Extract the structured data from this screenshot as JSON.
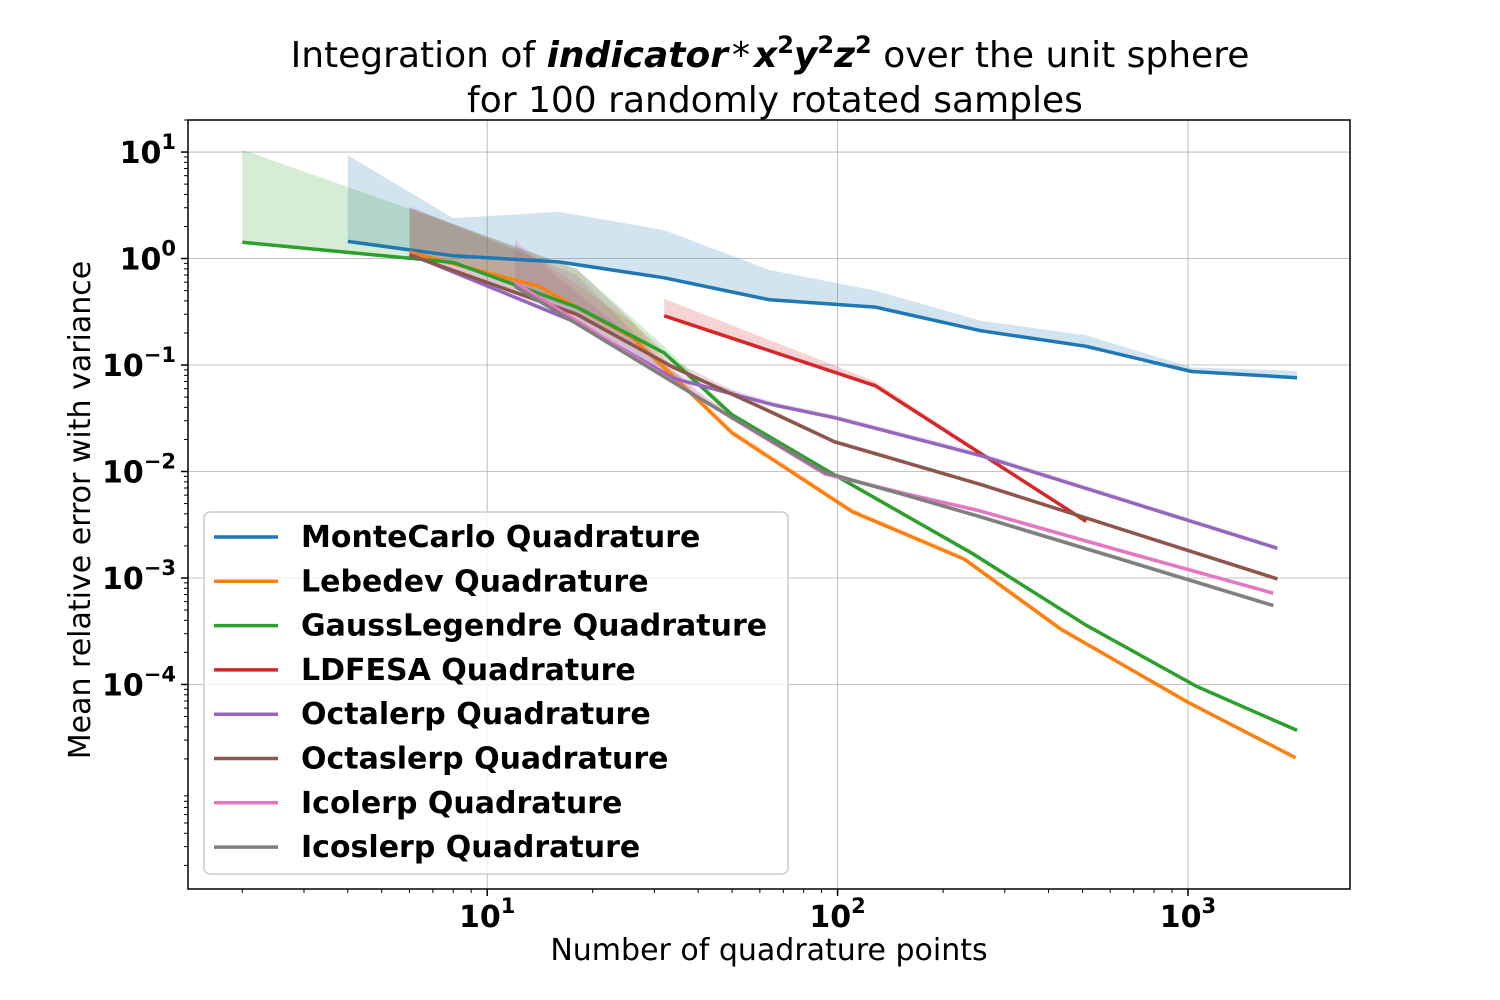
{
  "chart_data": {
    "type": "line",
    "title": {
      "prefix": "Integration of ",
      "math": [
        "indicator",
        "*",
        "x",
        "2",
        "y",
        "2",
        "z",
        "2"
      ],
      "suffix": " over the unit sphere",
      "line2": "for 100 randomly rotated samples"
    },
    "xlabel": "Number of quadrature points",
    "ylabel": "Mean relative error with variance",
    "x_scale": "log",
    "y_scale": "log",
    "xlim": [
      1.4,
      2900
    ],
    "ylim": [
      1.2e-06,
      20
    ],
    "x_ticks": [
      {
        "value": 10,
        "base": "10",
        "exp": "1"
      },
      {
        "value": 100,
        "base": "10",
        "exp": "2"
      },
      {
        "value": 1000,
        "base": "10",
        "exp": "3"
      }
    ],
    "y_ticks": [
      {
        "value": 10,
        "base": "10",
        "exp": "1"
      },
      {
        "value": 1,
        "base": "10",
        "exp": "0"
      },
      {
        "value": 0.1,
        "base": "10",
        "exp": "−1"
      },
      {
        "value": 0.01,
        "base": "10",
        "exp": "−2"
      },
      {
        "value": 0.001,
        "base": "10",
        "exp": "−3"
      },
      {
        "value": 0.0001,
        "base": "10",
        "exp": "−4"
      }
    ],
    "grid": true,
    "legend_position": "lower-left",
    "series": [
      {
        "name": "MonteCarlo Quadrature",
        "color": "#1f77b4",
        "x": [
          4,
          8,
          16,
          32,
          64,
          128,
          256,
          512,
          1024,
          2048
        ],
        "y": [
          1.45,
          1.06,
          0.93,
          0.66,
          0.41,
          0.35,
          0.21,
          0.15,
          0.087,
          0.076
        ],
        "band_upper": [
          9.3,
          2.4,
          2.75,
          1.85,
          0.78,
          0.5,
          0.26,
          0.19,
          0.095,
          0.088
        ],
        "band_lower": [
          1.45,
          1.06,
          0.93,
          0.66,
          0.41,
          0.35,
          0.21,
          0.15,
          0.087,
          0.076
        ]
      },
      {
        "name": "Lebedev Quadrature",
        "color": "#ff7f0e",
        "x": [
          6,
          14,
          26,
          38,
          50,
          110,
          230,
          434,
          1000,
          2030
        ],
        "y": [
          1.15,
          0.55,
          0.18,
          0.055,
          0.023,
          0.0042,
          0.0015,
          0.00033,
          6.8e-05,
          2.05e-05
        ],
        "band_upper": [
          3.0,
          1.0,
          0.25,
          0.06,
          0.025,
          0.0045,
          0.0016,
          0.00035,
          7e-05,
          2.1e-05
        ],
        "band_lower": [
          1.15,
          0.55,
          0.18,
          0.055,
          0.023,
          0.0042,
          0.0015,
          0.00033,
          6.8e-05,
          2.05e-05
        ]
      },
      {
        "name": "GaussLegendre Quadrature",
        "color": "#2ca02c",
        "x": [
          2,
          8,
          18,
          32,
          50,
          98,
          242,
          512,
          1058,
          2048
        ],
        "y": [
          1.42,
          0.92,
          0.35,
          0.13,
          0.034,
          0.0093,
          0.0017,
          0.00036,
          9.6e-05,
          3.7e-05
        ],
        "band_upper": [
          10.5,
          2.1,
          0.8,
          0.15,
          0.036,
          0.0097,
          0.0018,
          0.00037,
          0.0001,
          3.8e-05
        ],
        "band_lower": [
          1.42,
          0.92,
          0.35,
          0.13,
          0.034,
          0.0093,
          0.0017,
          0.00036,
          9.6e-05,
          3.7e-05
        ]
      },
      {
        "name": "LDFESA Quadrature",
        "color": "#d62728",
        "x": [
          32,
          128,
          512
        ],
        "y": [
          0.29,
          0.064,
          0.0034
        ],
        "band_upper": [
          0.42,
          0.07,
          0.0035
        ],
        "band_lower": [
          0.29,
          0.064,
          0.0034
        ]
      },
      {
        "name": "Octalerp Quadrature",
        "color": "#9467bd",
        "x": [
          6,
          18,
          34,
          66,
          98,
          258,
          1800
        ],
        "y": [
          1.1,
          0.25,
          0.075,
          0.042,
          0.032,
          0.014,
          0.0019
        ],
        "band_upper": [
          3.1,
          0.7,
          0.085,
          0.045,
          0.034,
          0.015,
          0.002
        ],
        "band_lower": [
          1.1,
          0.25,
          0.075,
          0.042,
          0.032,
          0.014,
          0.0019
        ]
      },
      {
        "name": "Octaslerp Quadrature",
        "color": "#8c564b",
        "x": [
          6,
          18,
          34,
          66,
          98,
          258,
          1800
        ],
        "y": [
          1.08,
          0.3,
          0.095,
          0.035,
          0.019,
          0.0075,
          0.00098
        ],
        "band_upper": [
          3.0,
          0.8,
          0.11,
          0.037,
          0.02,
          0.0078,
          0.001
        ],
        "band_lower": [
          1.08,
          0.3,
          0.095,
          0.035,
          0.019,
          0.0075,
          0.00098
        ]
      },
      {
        "name": "Icolerp Quadrature",
        "color": "#e377c2",
        "x": [
          12,
          42,
          92,
          162,
          252,
          642,
          1752
        ],
        "y": [
          0.6,
          0.045,
          0.0095,
          0.006,
          0.0043,
          0.0018,
          0.00072
        ],
        "band_upper": [
          1.5,
          0.05,
          0.01,
          0.0063,
          0.0045,
          0.0019,
          0.00075
        ],
        "band_lower": [
          0.6,
          0.045,
          0.0095,
          0.006,
          0.0043,
          0.0018,
          0.00072
        ]
      },
      {
        "name": "Icoslerp Quadrature",
        "color": "#7f7f7f",
        "x": [
          12,
          42,
          92,
          162,
          252,
          642,
          1752
        ],
        "y": [
          0.55,
          0.045,
          0.0098,
          0.0058,
          0.0038,
          0.0015,
          0.00055
        ],
        "band_upper": [
          1.4,
          0.05,
          0.0103,
          0.006,
          0.004,
          0.0016,
          0.00058
        ],
        "band_lower": [
          0.55,
          0.045,
          0.0098,
          0.0058,
          0.0038,
          0.0015,
          0.00055
        ]
      }
    ]
  }
}
